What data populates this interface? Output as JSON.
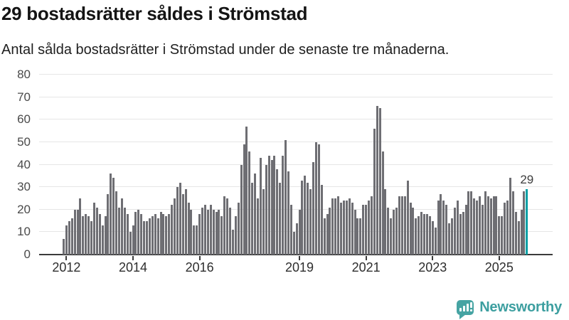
{
  "header": {
    "title": "29 bostadsrätter såldes i Strömstad",
    "subtitle": "Antal sålda bostadsrätter i Strömstad under de senaste tre månaderna."
  },
  "chart_data": {
    "type": "bar",
    "title": "29 bostadsrätter såldes i Strömstad",
    "subtitle": "Antal sålda bostadsrätter i Strömstad under de senaste tre månaderna.",
    "frequency": "monthly",
    "start_month": "2011-12",
    "ylim": [
      0,
      80
    ],
    "y_ticks": [
      0,
      10,
      20,
      30,
      40,
      50,
      60,
      70,
      80
    ],
    "grid": "horizontal",
    "xlabel": "",
    "ylabel": "",
    "x_ticks": [
      {
        "label": "2012",
        "month_index": 1
      },
      {
        "label": "2014",
        "month_index": 25
      },
      {
        "label": "2016",
        "month_index": 49
      },
      {
        "label": "2019",
        "month_index": 85
      },
      {
        "label": "2021",
        "month_index": 109
      },
      {
        "label": "2023",
        "month_index": 133
      },
      {
        "label": "2025",
        "month_index": 157
      }
    ],
    "values": [
      7,
      13,
      15,
      16,
      20,
      20,
      25,
      17,
      18,
      17,
      15,
      23,
      21,
      18,
      13,
      17,
      27,
      36,
      34,
      28,
      21,
      25,
      21,
      18,
      10,
      13,
      19,
      20,
      18,
      15,
      15,
      16,
      17,
      18,
      16,
      19,
      18,
      17,
      18,
      22,
      25,
      30,
      32,
      27,
      29,
      23,
      20,
      13,
      13,
      18,
      21,
      22,
      20,
      22,
      20,
      19,
      20,
      17,
      26,
      25,
      21,
      11,
      17,
      23,
      40,
      49,
      57,
      46,
      32,
      36,
      25,
      43,
      29,
      40,
      44,
      42,
      44,
      38,
      32,
      44,
      51,
      37,
      22,
      10,
      14,
      20,
      33,
      35,
      32,
      29,
      41,
      50,
      49,
      31,
      16,
      18,
      21,
      25,
      25,
      26,
      23,
      24,
      24,
      25,
      23,
      20,
      16,
      16,
      22,
      22,
      24,
      26,
      56,
      66,
      65,
      46,
      29,
      21,
      16,
      20,
      21,
      26,
      26,
      26,
      33,
      23,
      21,
      16,
      17,
      19,
      18,
      18,
      17,
      15,
      12,
      24,
      27,
      24,
      22,
      14,
      16,
      21,
      24,
      18,
      19,
      22,
      28,
      28,
      25,
      24,
      26,
      22,
      28,
      26,
      25,
      26,
      26,
      17,
      17,
      23,
      24,
      34,
      28,
      19,
      15,
      20,
      28,
      29
    ],
    "highlight": {
      "index": 167,
      "value": 29,
      "label": "29"
    },
    "colors": {
      "bar": "#6e6e73",
      "highlight_bar": "#00a0a5",
      "gridline": "#e6e6e6",
      "axis": "#3b3b3b",
      "brand": "#3d9fa0"
    },
    "legend": "none"
  },
  "footer": {
    "brand": "Newsworthy"
  }
}
